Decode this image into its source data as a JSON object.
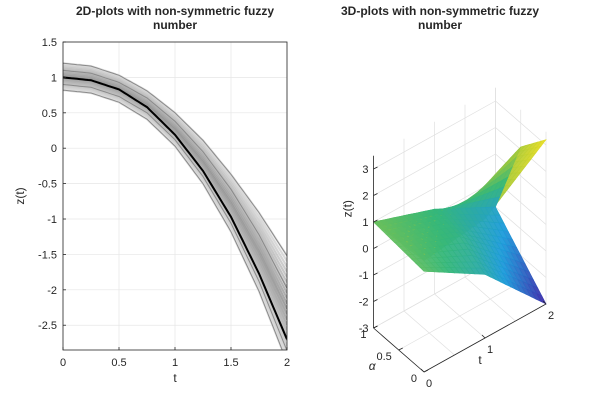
{
  "chart_data": [
    {
      "type": "line",
      "title": "2D-plots with non-symmetric fuzzy\nnumber",
      "xlabel": "t",
      "ylabel": "z(t)",
      "xlim": [
        0,
        2
      ],
      "ylim": [
        -2.85,
        1.5
      ],
      "xticks": [
        "0",
        "0.5",
        "1",
        "1.5",
        "2"
      ],
      "yticks": [
        "1.5",
        "1",
        "0.5",
        "0",
        "-0.5",
        "-1",
        "-1.5",
        "-2",
        "-2.5"
      ],
      "grid": true,
      "series": [
        {
          "x": [
            0,
            0.25,
            0.5,
            0.75,
            1,
            1.25,
            1.5,
            1.75,
            2
          ],
          "y": [
            1.2,
            1.16,
            1.03,
            0.81,
            0.5,
            0.11,
            -0.37,
            -0.91,
            -1.52
          ]
        },
        {
          "x": [
            0,
            0.25,
            0.5,
            0.75,
            1,
            1.25,
            1.5,
            1.75,
            2
          ],
          "y": [
            1.1,
            1.06,
            0.93,
            0.71,
            0.38,
            -0.05,
            -0.58,
            -1.22,
            -1.98
          ]
        },
        {
          "x": [
            0,
            0.25,
            0.5,
            0.75,
            1,
            1.25,
            1.5,
            1.75,
            2
          ],
          "y": [
            1.0,
            0.96,
            0.83,
            0.58,
            0.19,
            -0.32,
            -0.97,
            -1.77,
            -2.7
          ]
        },
        {
          "x": [
            0,
            0.25,
            0.5,
            0.75,
            1,
            1.25,
            1.5,
            1.75,
            2
          ],
          "y": [
            0.9,
            0.86,
            0.73,
            0.5,
            0.12,
            -0.4,
            -1.06,
            -1.88,
            -2.86
          ]
        },
        {
          "x": [
            0,
            0.25,
            0.5,
            0.75,
            1,
            1.25,
            1.5,
            1.75,
            2
          ],
          "y": [
            0.82,
            0.78,
            0.65,
            0.41,
            0.03,
            -0.5,
            -1.18,
            -2.02,
            -3.02
          ]
        }
      ],
      "colors": {
        "band": "#c8c8c8",
        "line": "#000000",
        "axis": "#262626",
        "grid": "#e6e6e6"
      }
    },
    {
      "type": "surface",
      "title": "3D-plots with non-symmetric fuzzy\nnumber",
      "xlabel": "t",
      "ylabel": "α",
      "zlabel": "z(t)",
      "xlim": [
        0,
        2
      ],
      "ylim": [
        0,
        1
      ],
      "zlim": [
        -3,
        3.5
      ],
      "xticks": [
        "0",
        "1",
        "2"
      ],
      "yticks": [
        "0",
        "0.5",
        "1"
      ],
      "zticks": [
        "3",
        "2",
        "1",
        "0",
        "-1",
        "-2",
        "-3"
      ],
      "grid": true,
      "surface_t": [
        0,
        1,
        2
      ],
      "surface_alpha": [
        0,
        0.5,
        1
      ],
      "surface_z_upper": [
        [
          1.2,
          1.5,
          3.2
        ],
        [
          1.1,
          0.9,
          2.1
        ],
        [
          1.0,
          0.2,
          -1.0
        ]
      ],
      "surface_z_lower": [
        [
          0.8,
          -0.6,
          -3.0
        ],
        [
          0.9,
          0.0,
          -2.0
        ],
        [
          1.0,
          0.2,
          -1.0
        ]
      ],
      "colormap": [
        "#3e26a8",
        "#1c9bda",
        "#35b779",
        "#a5c93a",
        "#f9e21c"
      ]
    }
  ]
}
